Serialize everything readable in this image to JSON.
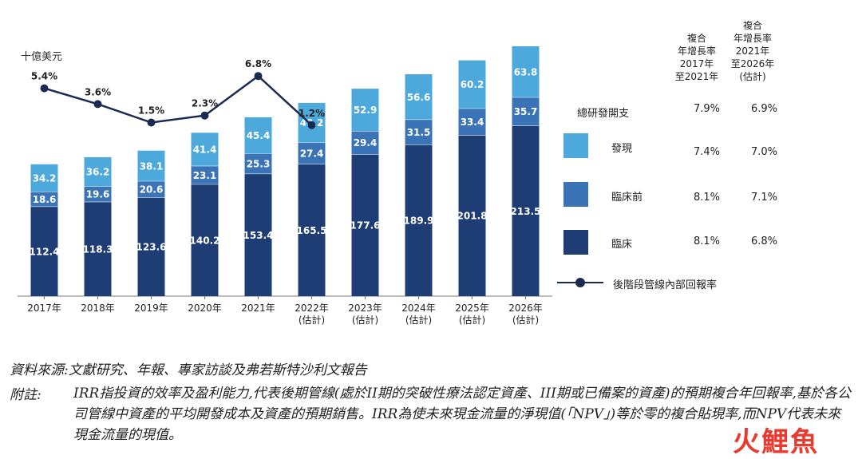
{
  "chart_data": {
    "type": "bar",
    "unit_label": "十億美元",
    "categories": [
      "2017年",
      "2018年",
      "2019年",
      "2020年",
      "2021年",
      "2022年\n(估計)",
      "2023年\n(估計)",
      "2024年\n(估計)",
      "2025年\n(估計)",
      "2026年\n(估計)"
    ],
    "series": [
      {
        "name": "臨床",
        "color": "#1f3d75",
        "values": [
          112.4,
          118.3,
          123.6,
          140.2,
          153.4,
          165.5,
          177.6,
          189.9,
          201.8,
          213.5
        ]
      },
      {
        "name": "臨床前",
        "color": "#3b74b6",
        "values": [
          18.6,
          19.6,
          20.6,
          23.1,
          25.3,
          27.4,
          29.4,
          31.5,
          33.4,
          35.7
        ]
      },
      {
        "name": "發現",
        "color": "#4da8dc",
        "values": [
          34.2,
          36.2,
          38.1,
          41.4,
          45.4,
          49.2,
          52.9,
          56.6,
          60.2,
          63.8
        ]
      }
    ],
    "line": {
      "name": "後階段管線內部回報率",
      "values": [
        5.4,
        3.6,
        1.5,
        2.3,
        6.8,
        1.2
      ],
      "labels": [
        "5.4%",
        "3.6%",
        "1.5%",
        "2.3%",
        "6.8%",
        "1.2%"
      ]
    }
  },
  "legend": {
    "col1_header": [
      "複合",
      "年增長率",
      "2017年",
      "至2021年"
    ],
    "col2_header": [
      "複合",
      "年增長率",
      "2021年",
      "至2026年",
      "(估計)"
    ],
    "total_label": "總研發開支",
    "total_v1": "7.9%",
    "total_v2": "6.9%",
    "discovery_label": "發現",
    "discovery_v1": "7.4%",
    "discovery_v2": "7.0%",
    "preclinical_label": "臨床前",
    "preclinical_v1": "8.1%",
    "preclinical_v2": "7.1%",
    "clinical_label": "臨床",
    "clinical_v1": "8.1%",
    "clinical_v2": "6.8%",
    "irr_label": "後階段管線內部回報率"
  },
  "footer": {
    "source": "資料來源:文獻研究、年報、專家訪談及弗若斯特沙利文報告",
    "note_label": "附註:",
    "note": "IRR指投資的效率及盈利能力,代表後期管線(處於II期的突破性療法認定資產、III期或已備案的資產)的預期複合年回報率,基於各公司管線中資產的平均開發成本及資產的預期銷售。IRR為使未來現金流量的淨現值(「NPV」)等於零的複合貼現率,而NPV代表未來現金流量的現值。"
  },
  "watermark": "火鯉魚"
}
